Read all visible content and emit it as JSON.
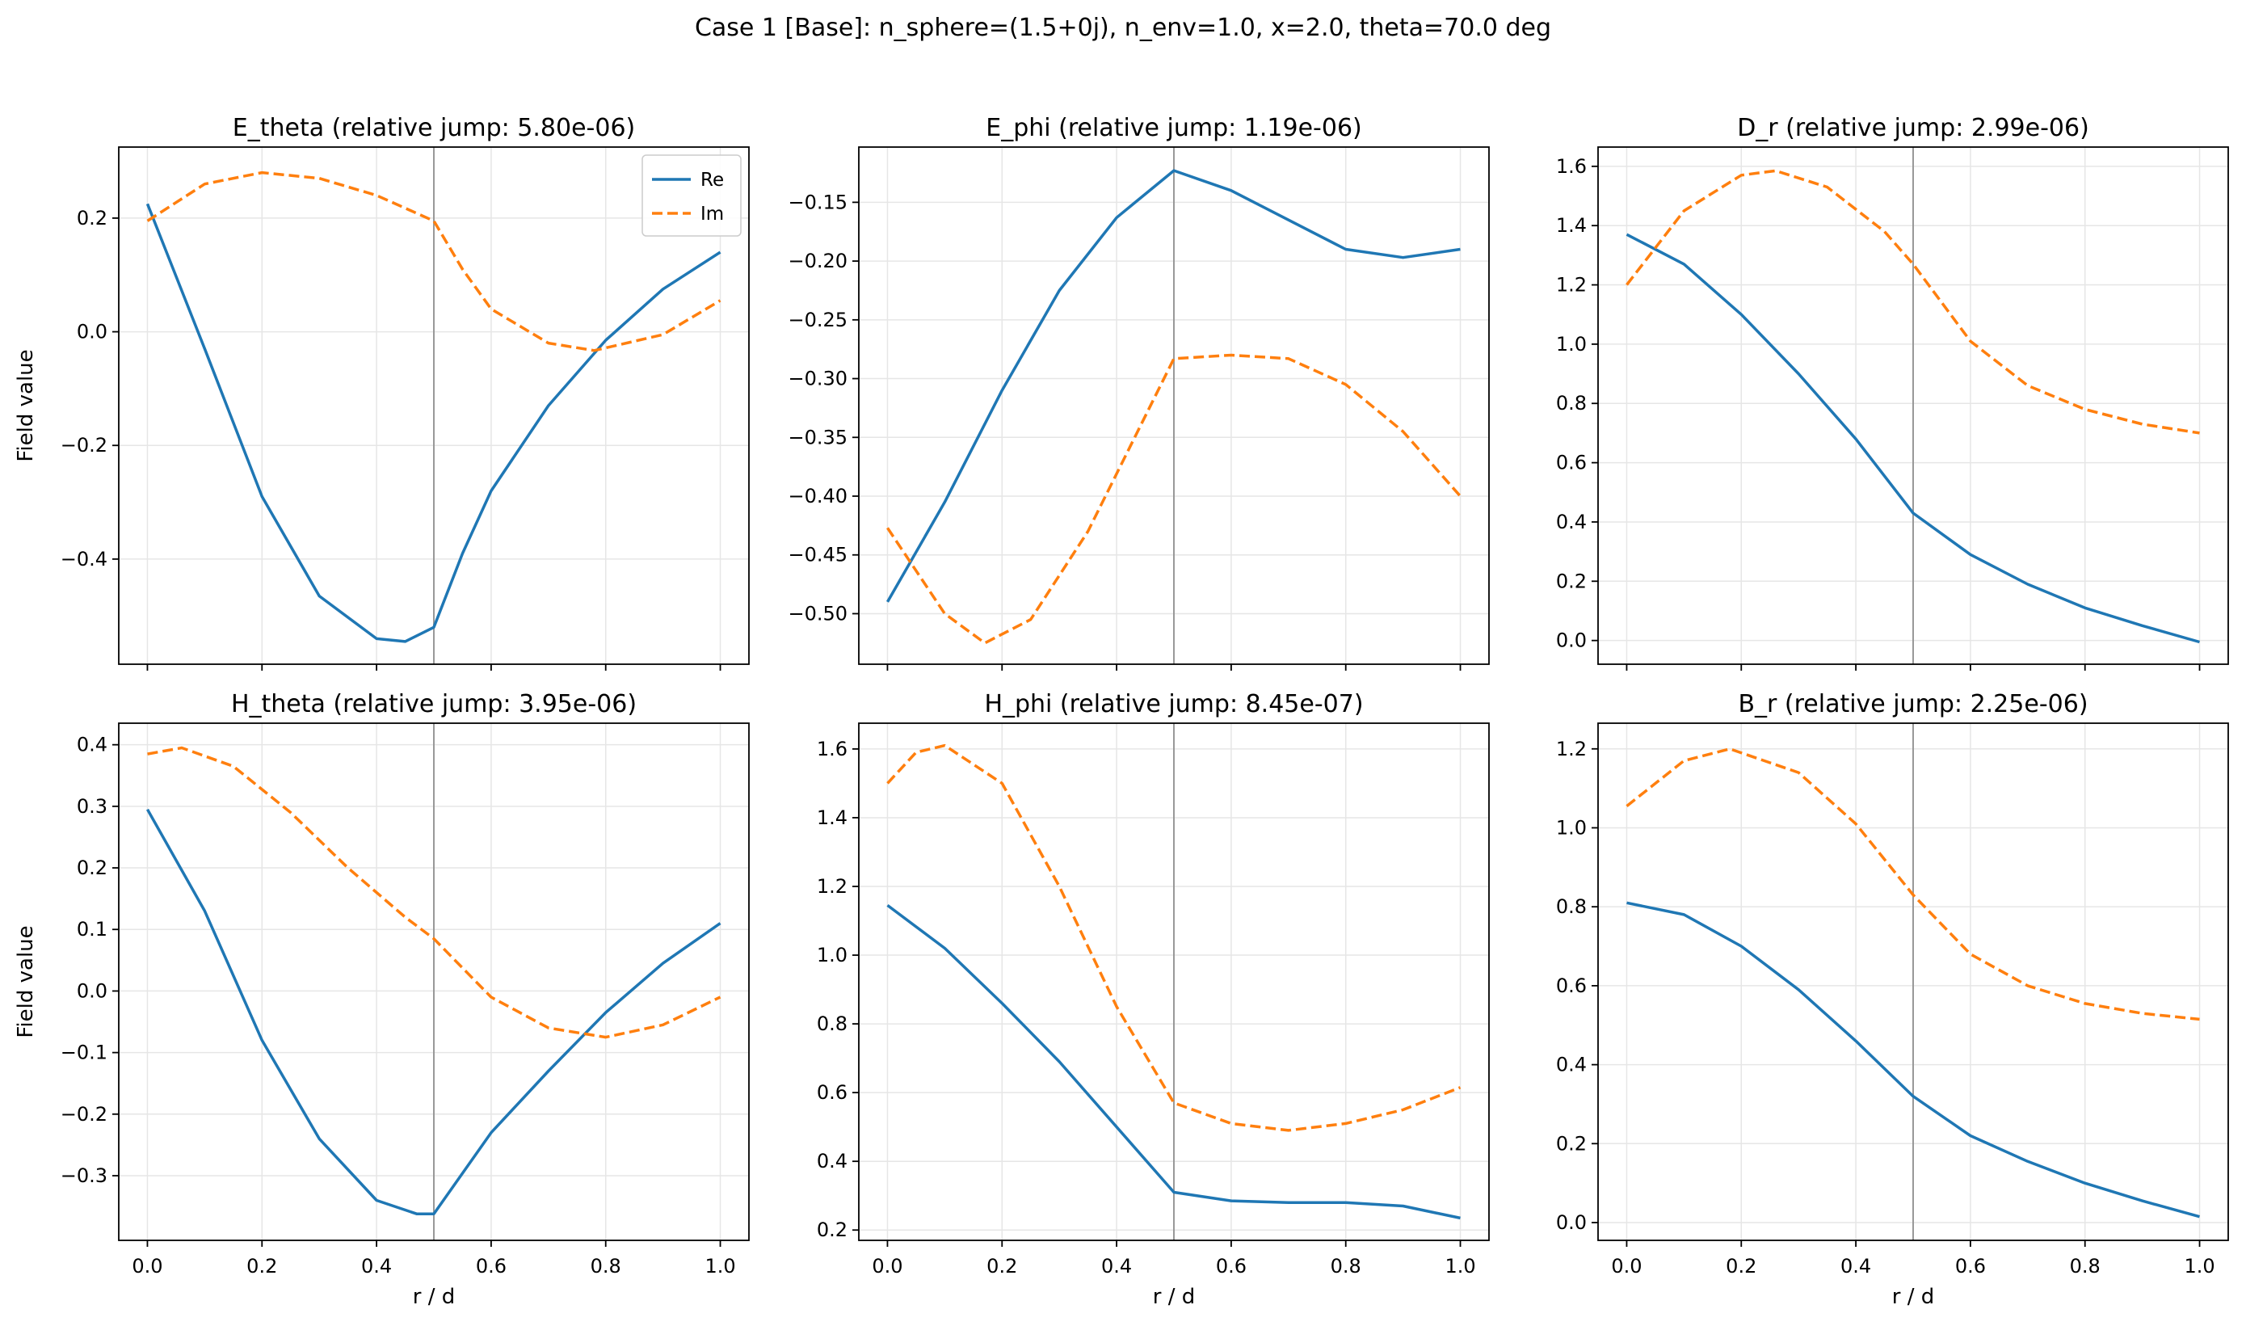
{
  "figure": {
    "suptitle": "Case 1 [Base]: n_sphere=(1.5+0j), n_env=1.0, x=2.0, theta=70.0 deg"
  },
  "colors": {
    "re": "#1f77b4",
    "im": "#ff7f0e",
    "interface": "#999999",
    "grid": "#e6e6e6"
  },
  "chart_data": [
    {
      "type": "line",
      "title": "E_theta (relative jump: 5.80e-06)",
      "xlabel": "",
      "ylabel": "Field value",
      "xlim": [
        -0.05,
        1.05
      ],
      "ylim": [
        -0.585,
        0.325
      ],
      "xticks": [
        0.0,
        0.2,
        0.4,
        0.6,
        0.8,
        1.0
      ],
      "xtick_labels_visible": false,
      "yticks": [
        -0.4,
        -0.2,
        0.0,
        0.2
      ],
      "ytick_labels": [
        "−0.4",
        "−0.2",
        "0.0",
        "0.2"
      ],
      "grid": true,
      "interface_x": 0.5,
      "legend": {
        "placement": "top-right",
        "entries": [
          "Re",
          "Im"
        ]
      },
      "series": [
        {
          "name": "Re",
          "style": "solid",
          "x": [
            0.0,
            0.1,
            0.2,
            0.3,
            0.4,
            0.45,
            0.5,
            0.55,
            0.6,
            0.7,
            0.8,
            0.9,
            1.0
          ],
          "values": [
            0.225,
            -0.03,
            -0.29,
            -0.465,
            -0.54,
            -0.545,
            -0.52,
            -0.39,
            -0.28,
            -0.13,
            -0.015,
            0.075,
            0.14
          ]
        },
        {
          "name": "Im",
          "style": "dashed",
          "x": [
            0.0,
            0.1,
            0.2,
            0.3,
            0.4,
            0.5,
            0.55,
            0.6,
            0.7,
            0.78,
            0.9,
            1.0
          ],
          "values": [
            0.195,
            0.26,
            0.28,
            0.27,
            0.24,
            0.195,
            0.11,
            0.04,
            -0.02,
            -0.033,
            -0.005,
            0.055
          ]
        }
      ]
    },
    {
      "type": "line",
      "title": "E_phi (relative jump: 1.19e-06)",
      "xlabel": "",
      "ylabel": "",
      "xlim": [
        -0.05,
        1.05
      ],
      "ylim": [
        -0.543,
        -0.103
      ],
      "xticks": [
        0.0,
        0.2,
        0.4,
        0.6,
        0.8,
        1.0
      ],
      "xtick_labels_visible": false,
      "yticks": [
        -0.5,
        -0.45,
        -0.4,
        -0.35,
        -0.3,
        -0.25,
        -0.2,
        -0.15
      ],
      "ytick_labels": [
        "−0.50",
        "−0.45",
        "−0.40",
        "−0.35",
        "−0.30",
        "−0.25",
        "−0.20",
        "−0.15"
      ],
      "grid": true,
      "interface_x": 0.5,
      "series": [
        {
          "name": "Re",
          "style": "solid",
          "x": [
            0.0,
            0.1,
            0.2,
            0.3,
            0.4,
            0.5,
            0.6,
            0.7,
            0.8,
            0.9,
            1.0
          ],
          "values": [
            -0.49,
            -0.405,
            -0.31,
            -0.225,
            -0.163,
            -0.123,
            -0.14,
            -0.165,
            -0.19,
            -0.197,
            -0.19
          ]
        },
        {
          "name": "Im",
          "style": "dashed",
          "x": [
            0.0,
            0.1,
            0.17,
            0.25,
            0.35,
            0.5,
            0.6,
            0.7,
            0.8,
            0.9,
            1.0
          ],
          "values": [
            -0.427,
            -0.5,
            -0.525,
            -0.505,
            -0.43,
            -0.283,
            -0.28,
            -0.283,
            -0.305,
            -0.345,
            -0.4
          ]
        }
      ]
    },
    {
      "type": "line",
      "title": "D_r (relative jump: 2.99e-06)",
      "xlabel": "",
      "ylabel": "",
      "xlim": [
        -0.05,
        1.05
      ],
      "ylim": [
        -0.08,
        1.665
      ],
      "xticks": [
        0.0,
        0.2,
        0.4,
        0.6,
        0.8,
        1.0
      ],
      "xtick_labels_visible": false,
      "yticks": [
        0.0,
        0.2,
        0.4,
        0.6,
        0.8,
        1.0,
        1.2,
        1.4,
        1.6
      ],
      "ytick_labels": [
        "0.0",
        "0.2",
        "0.4",
        "0.6",
        "0.8",
        "1.0",
        "1.2",
        "1.4",
        "1.6"
      ],
      "grid": true,
      "interface_x": 0.5,
      "series": [
        {
          "name": "Re",
          "style": "solid",
          "x": [
            0.0,
            0.1,
            0.2,
            0.3,
            0.4,
            0.5,
            0.6,
            0.7,
            0.8,
            0.9,
            1.0
          ],
          "values": [
            1.37,
            1.27,
            1.1,
            0.9,
            0.68,
            0.43,
            0.29,
            0.19,
            0.11,
            0.05,
            -0.005
          ]
        },
        {
          "name": "Im",
          "style": "dashed",
          "x": [
            0.0,
            0.1,
            0.2,
            0.26,
            0.35,
            0.45,
            0.5,
            0.6,
            0.7,
            0.8,
            0.9,
            1.0
          ],
          "values": [
            1.2,
            1.45,
            1.57,
            1.585,
            1.53,
            1.38,
            1.27,
            1.01,
            0.86,
            0.78,
            0.73,
            0.7
          ]
        }
      ]
    },
    {
      "type": "line",
      "title": "H_theta (relative jump: 3.95e-06)",
      "xlabel": "r / d",
      "ylabel": "Field value",
      "xlim": [
        -0.05,
        1.05
      ],
      "ylim": [
        -0.405,
        0.435
      ],
      "xticks": [
        0.0,
        0.2,
        0.4,
        0.6,
        0.8,
        1.0
      ],
      "xtick_labels_visible": true,
      "xtick_labels": [
        "0.0",
        "0.2",
        "0.4",
        "0.6",
        "0.8",
        "1.0"
      ],
      "yticks": [
        -0.3,
        -0.2,
        -0.1,
        0.0,
        0.1,
        0.2,
        0.3,
        0.4
      ],
      "ytick_labels": [
        "−0.3",
        "−0.2",
        "−0.1",
        "0.0",
        "0.1",
        "0.2",
        "0.3",
        "0.4"
      ],
      "grid": true,
      "interface_x": 0.5,
      "series": [
        {
          "name": "Re",
          "style": "solid",
          "x": [
            0.0,
            0.1,
            0.2,
            0.3,
            0.4,
            0.47,
            0.5,
            0.6,
            0.7,
            0.8,
            0.9,
            1.0
          ],
          "values": [
            0.295,
            0.13,
            -0.08,
            -0.24,
            -0.34,
            -0.362,
            -0.362,
            -0.23,
            -0.13,
            -0.035,
            0.045,
            0.11
          ]
        },
        {
          "name": "Im",
          "style": "dashed",
          "x": [
            0.0,
            0.06,
            0.15,
            0.25,
            0.35,
            0.45,
            0.5,
            0.6,
            0.7,
            0.8,
            0.9,
            1.0
          ],
          "values": [
            0.385,
            0.395,
            0.365,
            0.29,
            0.2,
            0.12,
            0.085,
            -0.01,
            -0.06,
            -0.075,
            -0.055,
            -0.01
          ]
        }
      ]
    },
    {
      "type": "line",
      "title": "H_phi (relative jump: 8.45e-07)",
      "xlabel": "r / d",
      "ylabel": "",
      "xlim": [
        -0.05,
        1.05
      ],
      "ylim": [
        0.17,
        1.675
      ],
      "xticks": [
        0.0,
        0.2,
        0.4,
        0.6,
        0.8,
        1.0
      ],
      "xtick_labels_visible": true,
      "xtick_labels": [
        "0.0",
        "0.2",
        "0.4",
        "0.6",
        "0.8",
        "1.0"
      ],
      "yticks": [
        0.2,
        0.4,
        0.6,
        0.8,
        1.0,
        1.2,
        1.4,
        1.6
      ],
      "ytick_labels": [
        "0.2",
        "0.4",
        "0.6",
        "0.8",
        "1.0",
        "1.2",
        "1.4",
        "1.6"
      ],
      "grid": true,
      "interface_x": 0.5,
      "series": [
        {
          "name": "Re",
          "style": "solid",
          "x": [
            0.0,
            0.1,
            0.2,
            0.3,
            0.4,
            0.5,
            0.6,
            0.7,
            0.8,
            0.9,
            1.0
          ],
          "values": [
            1.145,
            1.02,
            0.86,
            0.69,
            0.5,
            0.31,
            0.285,
            0.28,
            0.28,
            0.27,
            0.235
          ]
        },
        {
          "name": "Im",
          "style": "dashed",
          "x": [
            0.0,
            0.05,
            0.1,
            0.2,
            0.3,
            0.4,
            0.5,
            0.6,
            0.7,
            0.8,
            0.9,
            1.0
          ],
          "values": [
            1.5,
            1.59,
            1.61,
            1.5,
            1.2,
            0.85,
            0.57,
            0.51,
            0.49,
            0.51,
            0.55,
            0.615
          ]
        }
      ]
    },
    {
      "type": "line",
      "title": "B_r (relative jump: 2.25e-06)",
      "xlabel": "r / d",
      "ylabel": "",
      "xlim": [
        -0.05,
        1.05
      ],
      "ylim": [
        -0.045,
        1.265
      ],
      "xticks": [
        0.0,
        0.2,
        0.4,
        0.6,
        0.8,
        1.0
      ],
      "xtick_labels_visible": true,
      "xtick_labels": [
        "0.0",
        "0.2",
        "0.4",
        "0.6",
        "0.8",
        "1.0"
      ],
      "yticks": [
        0.0,
        0.2,
        0.4,
        0.6,
        0.8,
        1.0,
        1.2
      ],
      "ytick_labels": [
        "0.0",
        "0.2",
        "0.4",
        "0.6",
        "0.8",
        "1.0",
        "1.2"
      ],
      "grid": true,
      "interface_x": 0.5,
      "series": [
        {
          "name": "Re",
          "style": "solid",
          "x": [
            0.0,
            0.1,
            0.2,
            0.3,
            0.4,
            0.5,
            0.6,
            0.7,
            0.8,
            0.9,
            1.0
          ],
          "values": [
            0.81,
            0.78,
            0.7,
            0.59,
            0.46,
            0.32,
            0.22,
            0.155,
            0.1,
            0.055,
            0.015
          ]
        },
        {
          "name": "Im",
          "style": "dashed",
          "x": [
            0.0,
            0.1,
            0.18,
            0.3,
            0.4,
            0.5,
            0.6,
            0.7,
            0.8,
            0.9,
            1.0
          ],
          "values": [
            1.055,
            1.17,
            1.2,
            1.14,
            1.01,
            0.83,
            0.68,
            0.6,
            0.555,
            0.53,
            0.515
          ]
        }
      ]
    }
  ]
}
